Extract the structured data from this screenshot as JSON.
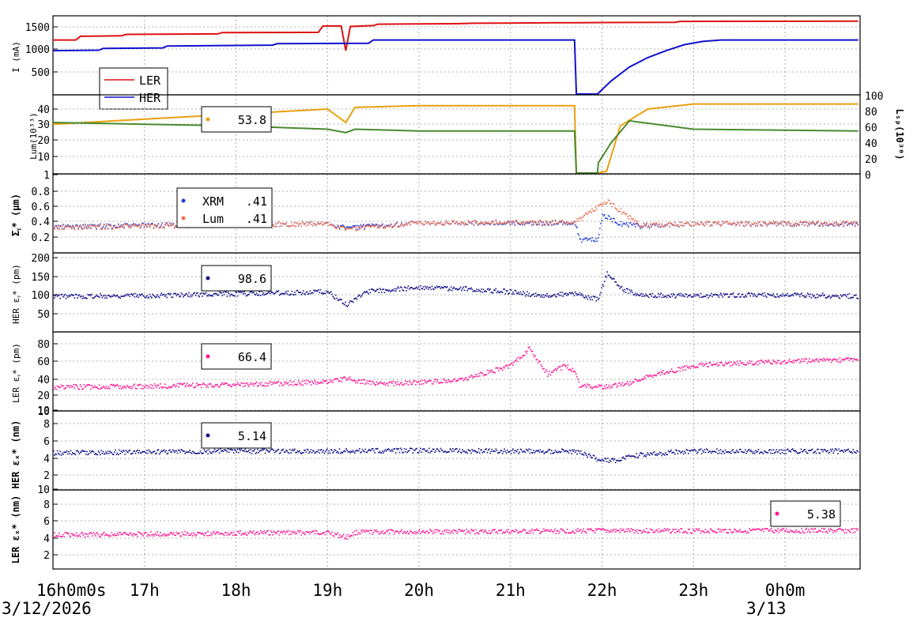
{
  "x_ticks": [
    "16h0m0s",
    "17h",
    "18h",
    "19h",
    "20h",
    "21h",
    "22h",
    "23h",
    "0h0m"
  ],
  "date_left": "3/12/2026",
  "date_right": "3/13",
  "colors": {
    "ler": "#dd1111",
    "her": "#1111cc",
    "lum_orange": "#e8a010",
    "lum_green": "#4a8a30",
    "xrm": "#1f3fe0",
    "lumsize": "#f07050",
    "dark_blue": "#10108a",
    "pink": "#ff1493"
  },
  "chart_data": [
    {
      "type": "line",
      "ylabel": "I (mA)",
      "yticks": [
        "500",
        "1000",
        "1500"
      ],
      "ylim": [
        0,
        1700
      ],
      "legend": [
        {
          "name": "LER",
          "color": "#dd1111"
        },
        {
          "name": "HER",
          "color": "#1111cc"
        }
      ],
      "series": [
        {
          "name": "LER",
          "color": "#dd1111",
          "points": [
            [
              16,
              1180
            ],
            [
              16.25,
              1180
            ],
            [
              16.3,
              1260
            ],
            [
              16.75,
              1270
            ],
            [
              16.8,
              1300
            ],
            [
              17.8,
              1310
            ],
            [
              17.85,
              1340
            ],
            [
              18.9,
              1345
            ],
            [
              18.95,
              1480
            ],
            [
              19.15,
              1480
            ],
            [
              19.2,
              950
            ],
            [
              19.25,
              1470
            ],
            [
              19.5,
              1490
            ],
            [
              19.55,
              1520
            ],
            [
              20.4,
              1530
            ],
            [
              20.6,
              1540
            ],
            [
              21.5,
              1550
            ],
            [
              21.7,
              1550
            ],
            [
              21.75,
              1550
            ],
            [
              22,
              1555
            ],
            [
              22.8,
              1560
            ],
            [
              22.85,
              1580
            ],
            [
              24.8,
              1585
            ]
          ]
        },
        {
          "name": "HER",
          "color": "#1111cc",
          "points": [
            [
              16,
              950
            ],
            [
              16.5,
              960
            ],
            [
              16.55,
              1000
            ],
            [
              17.2,
              1010
            ],
            [
              17.25,
              1050
            ],
            [
              18.4,
              1070
            ],
            [
              18.45,
              1100
            ],
            [
              19.45,
              1110
            ],
            [
              19.5,
              1180
            ],
            [
              21.7,
              1180
            ],
            [
              21.72,
              0
            ],
            [
              21.95,
              0
            ],
            [
              22.1,
              300
            ],
            [
              22.3,
              600
            ],
            [
              22.5,
              800
            ],
            [
              22.7,
              950
            ],
            [
              22.9,
              1080
            ],
            [
              23.1,
              1150
            ],
            [
              23.3,
              1180
            ],
            [
              24.8,
              1180
            ]
          ]
        }
      ]
    },
    {
      "type": "line",
      "ylabel": "Lum(10³³)",
      "y2label": "Lₛₚ(10³⁰)",
      "yticks": [
        "1",
        "10",
        "20",
        "30",
        "40"
      ],
      "y2ticks": [
        "0",
        "20",
        "40",
        "60",
        "80",
        "100"
      ],
      "legend": [
        {
          "name": "",
          "value": "53.8",
          "color": "#e8a010"
        }
      ],
      "series": [
        {
          "name": "",
          "color": "#e8a010",
          "points": [
            [
              16,
              31
            ],
            [
              17,
              34
            ],
            [
              18,
              37
            ],
            [
              19,
              40
            ],
            [
              19.2,
              32
            ],
            [
              19.3,
              41
            ],
            [
              20,
              42
            ],
            [
              21,
              42
            ],
            [
              21.7,
              42
            ],
            [
              21.72,
              1
            ],
            [
              21.95,
              1
            ],
            [
              22.05,
              3
            ],
            [
              22.2,
              30
            ],
            [
              22.5,
              40
            ],
            [
              23,
              43
            ],
            [
              24.8,
              43
            ]
          ]
        },
        {
          "name": "",
          "color": "#4a8a30",
          "points": [
            [
              16,
              32
            ],
            [
              17,
              31
            ],
            [
              18,
              30
            ],
            [
              19,
              28
            ],
            [
              19.2,
              26
            ],
            [
              19.3,
              28
            ],
            [
              20,
              27
            ],
            [
              21,
              27
            ],
            [
              21.7,
              27
            ],
            [
              21.72,
              1
            ],
            [
              21.95,
              1
            ],
            [
              21.96,
              8
            ],
            [
              22.1,
              20
            ],
            [
              22.3,
              33
            ],
            [
              23,
              28
            ],
            [
              24.8,
              27
            ]
          ]
        }
      ]
    },
    {
      "type": "scatter",
      "ylabel": "Σᵧ* (μm)",
      "yticks": [
        "0.2",
        "0.4",
        "0.6",
        "0.8"
      ],
      "legend": [
        {
          "name": "XRM",
          "value": ".41",
          "color": "#1f3fe0"
        },
        {
          "name": "Lum",
          "value": ".41",
          "color": "#f07050"
        }
      ],
      "series": [
        {
          "name": "XRM",
          "color": "#1f3fe0",
          "points": [
            [
              16,
              0.34
            ],
            [
              17,
              0.36
            ],
            [
              18,
              0.37
            ],
            [
              19,
              0.38
            ],
            [
              19.2,
              0.33
            ],
            [
              20,
              0.39
            ],
            [
              21,
              0.39
            ],
            [
              21.7,
              0.39
            ],
            [
              21.75,
              0.17
            ],
            [
              21.95,
              0.17
            ],
            [
              22,
              0.5
            ],
            [
              22.2,
              0.38
            ],
            [
              22.4,
              0.35
            ],
            [
              23,
              0.38
            ],
            [
              24.8,
              0.38
            ]
          ]
        },
        {
          "name": "Lum",
          "color": "#f07050",
          "points": [
            [
              16,
              0.33
            ],
            [
              17,
              0.35
            ],
            [
              18,
              0.37
            ],
            [
              19,
              0.38
            ],
            [
              19.2,
              0.31
            ],
            [
              20,
              0.39
            ],
            [
              21,
              0.4
            ],
            [
              21.7,
              0.4
            ],
            [
              22.05,
              0.68
            ],
            [
              22.2,
              0.55
            ],
            [
              22.4,
              0.36
            ],
            [
              23,
              0.38
            ],
            [
              24.8,
              0.39
            ]
          ]
        }
      ]
    },
    {
      "type": "scatter",
      "ylabel": "HER εᵧ* (pm)",
      "yticks": [
        "50",
        "100",
        "150",
        "200"
      ],
      "legend": [
        {
          "name": "",
          "value": "98.6",
          "color": "#10108a"
        }
      ],
      "series": [
        {
          "name": "",
          "color": "#10108a",
          "points": [
            [
              16,
              98
            ],
            [
              17,
              100
            ],
            [
              18,
              105
            ],
            [
              19,
              110
            ],
            [
              19.2,
              75
            ],
            [
              19.4,
              110
            ],
            [
              20,
              122
            ],
            [
              20.5,
              118
            ],
            [
              21,
              110
            ],
            [
              21.3,
              100
            ],
            [
              21.7,
              105
            ],
            [
              21.95,
              90
            ],
            [
              22.05,
              160
            ],
            [
              22.2,
              120
            ],
            [
              22.4,
              100
            ],
            [
              23,
              100
            ],
            [
              24,
              102
            ],
            [
              24.8,
              98
            ]
          ]
        }
      ]
    },
    {
      "type": "scatter",
      "ylabel": "LER εᵧ* (pm)",
      "yticks": [
        "10",
        "20",
        "40",
        "60",
        "80"
      ],
      "legend": [
        {
          "name": "",
          "value": "66.4",
          "color": "#ff1493"
        }
      ],
      "series": [
        {
          "name": "",
          "color": "#ff1493",
          "points": [
            [
              16,
              30
            ],
            [
              17,
              31
            ],
            [
              18,
              33
            ],
            [
              19,
              36
            ],
            [
              19.2,
              40
            ],
            [
              19.5,
              34
            ],
            [
              20,
              35
            ],
            [
              20.5,
              40
            ],
            [
              21,
              55
            ],
            [
              21.2,
              75
            ],
            [
              21.4,
              45
            ],
            [
              21.6,
              55
            ],
            [
              21.7,
              48
            ],
            [
              21.75,
              32
            ],
            [
              22,
              30
            ],
            [
              22.3,
              35
            ],
            [
              22.6,
              45
            ],
            [
              23,
              55
            ],
            [
              23.5,
              58
            ],
            [
              24,
              60
            ],
            [
              24.8,
              62
            ]
          ]
        }
      ]
    },
    {
      "type": "scatter",
      "ylabel": "HER εₓ* (nm)",
      "yticks": [
        "2",
        "4",
        "6",
        "8",
        "10"
      ],
      "legend": [
        {
          "name": "",
          "value": "5.14",
          "color": "#10108a"
        }
      ],
      "series": [
        {
          "name": "",
          "color": "#10108a",
          "points": [
            [
              16,
              4.8
            ],
            [
              17,
              4.9
            ],
            [
              18,
              5.0
            ],
            [
              19,
              5.0
            ],
            [
              20,
              5.1
            ],
            [
              21,
              5.0
            ],
            [
              21.7,
              5.0
            ],
            [
              21.95,
              4.0
            ],
            [
              22.1,
              3.8
            ],
            [
              22.4,
              4.5
            ],
            [
              22.8,
              4.9
            ],
            [
              23,
              5.0
            ],
            [
              24.8,
              5.0
            ]
          ]
        }
      ]
    },
    {
      "type": "scatter",
      "ylabel": "LER εₓ* (nm)",
      "yticks": [
        "2",
        "4",
        "6",
        "8",
        "10"
      ],
      "legend": [
        {
          "name": "",
          "value": "5.38",
          "color": "#ff1493"
        }
      ],
      "series": [
        {
          "name": "",
          "color": "#ff1493",
          "points": [
            [
              16,
              4.5
            ],
            [
              17,
              4.6
            ],
            [
              18,
              4.7
            ],
            [
              19,
              4.8
            ],
            [
              19.2,
              4.2
            ],
            [
              19.3,
              4.8
            ],
            [
              20,
              4.9
            ],
            [
              21,
              4.9
            ],
            [
              22,
              5.0
            ],
            [
              23,
              5.0
            ],
            [
              24,
              5.0
            ],
            [
              24.8,
              5.0
            ]
          ]
        }
      ]
    }
  ]
}
